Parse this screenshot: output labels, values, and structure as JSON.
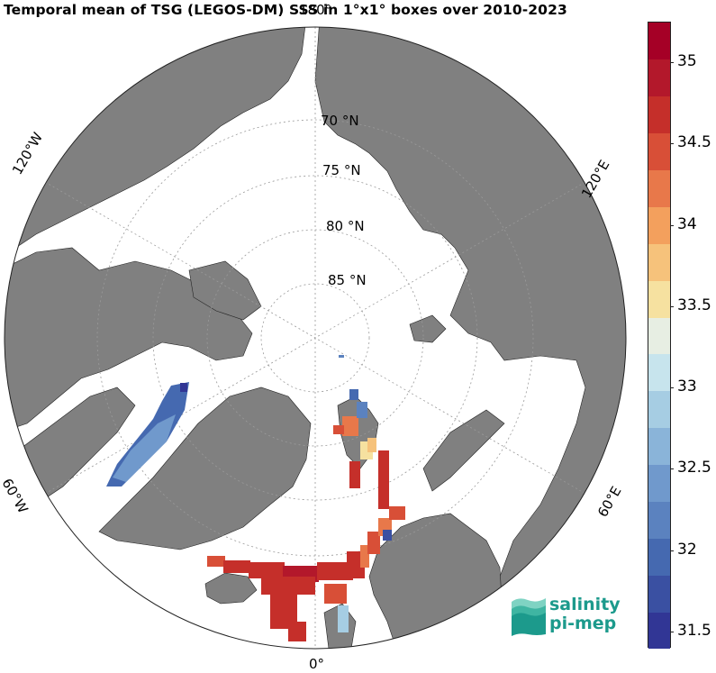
{
  "title": "Temporal mean of TSG (LEGOS-DM) SSS in 1°x1° boxes over 2010-2023",
  "map": {
    "projection": "north-polar-stereographic",
    "ocean_color": "#ffffff",
    "land_color": "#808080",
    "lat_labels": [
      "70 °N",
      "75 °N",
      "80 °N",
      "85 °N"
    ],
    "lat_values": [
      70,
      75,
      80,
      85
    ],
    "lon_labels": {
      "top": "180°",
      "left_upper": "120°W",
      "right_upper": "120°E",
      "left_lower": "60°W",
      "right_lower": "60°E",
      "bottom": "0°"
    }
  },
  "colorbar": {
    "min": 31.4,
    "max": 35.25,
    "ticks": [
      "31.5",
      "32",
      "32.5",
      "33",
      "33.5",
      "34",
      "34.5",
      "35"
    ],
    "tick_values": [
      31.5,
      32,
      32.5,
      33,
      33.5,
      34,
      34.5,
      35
    ],
    "colors": [
      "#313695",
      "#3a50a2",
      "#4569b0",
      "#5b82bf",
      "#7099cc",
      "#8ab4d9",
      "#a6cde3",
      "#c7e4ed",
      "#e7eee3",
      "#f6e1a0",
      "#f6c27b",
      "#f3a05d",
      "#e8784a",
      "#d84f37",
      "#c52f2a",
      "#b3182b",
      "#a50026"
    ]
  },
  "logo": {
    "line1": "salinity",
    "line2": "pi-mep",
    "color": "#1c9a8c"
  }
}
